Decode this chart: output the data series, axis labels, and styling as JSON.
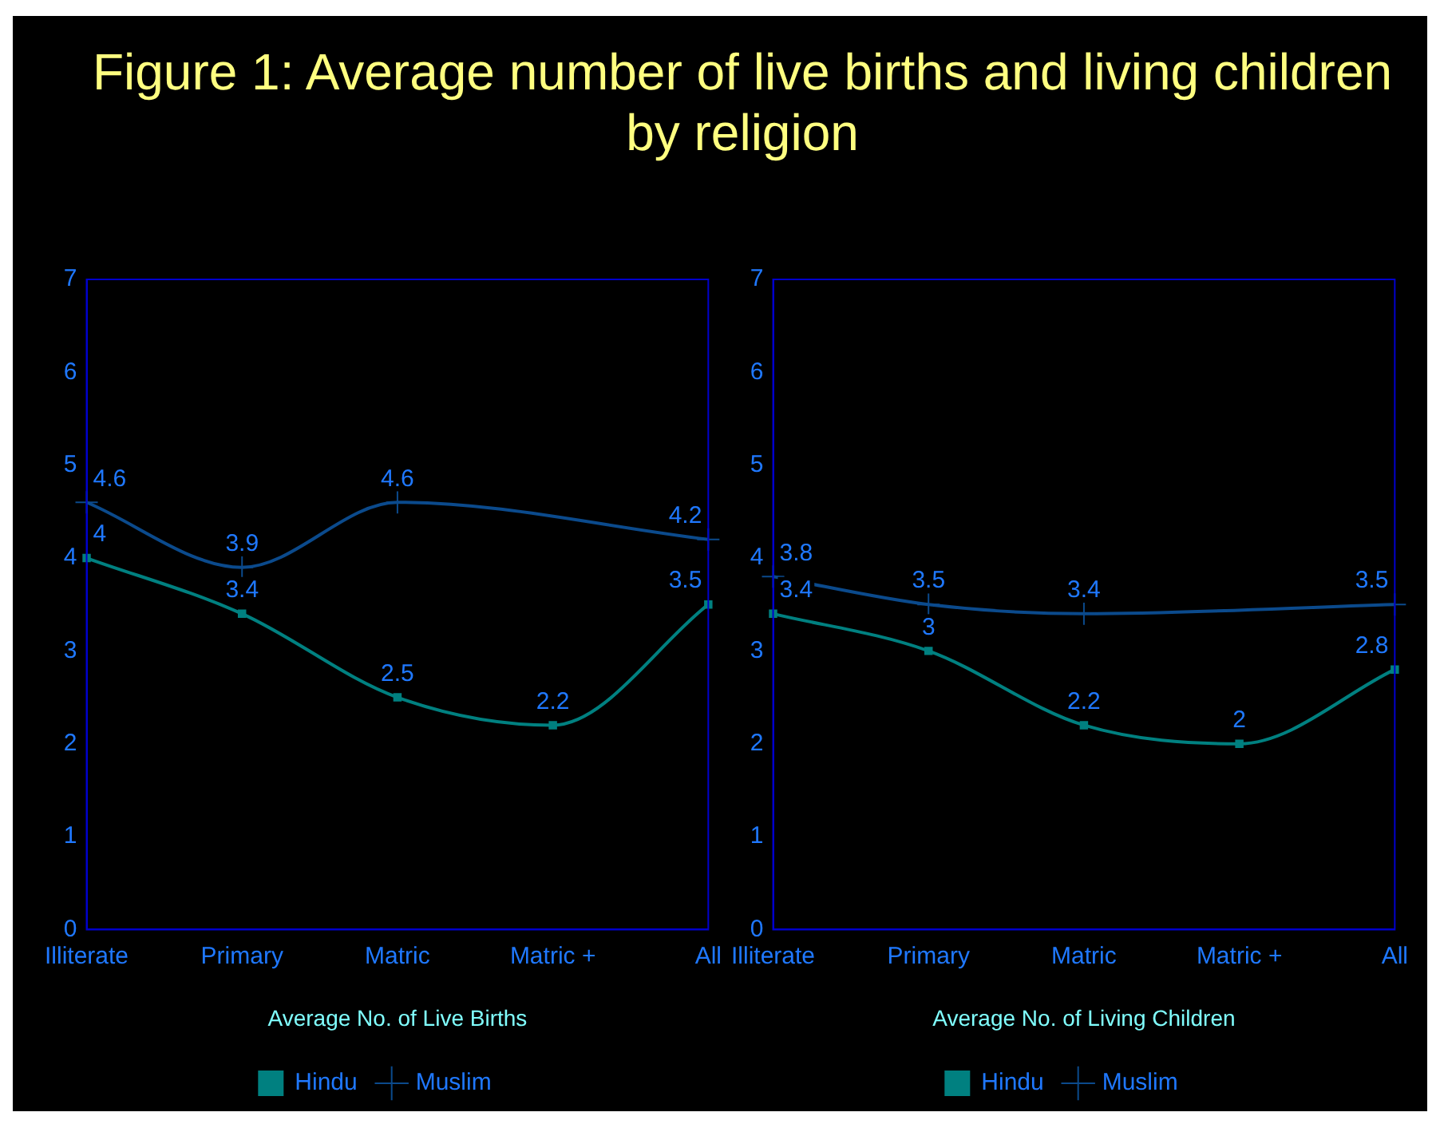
{
  "chart_data": [
    {
      "type": "line",
      "title": "Figure 1: Average number of live births and living children by religion",
      "xlabel": "Average No. of Live Births",
      "categories": [
        "Illiterate",
        "Primary",
        "Matric",
        "Matric +",
        "All"
      ],
      "series": [
        {
          "name": "Hindu",
          "color": "#008080",
          "marker": "square",
          "values": [
            4,
            3.4,
            2.5,
            2.2,
            3.5
          ]
        },
        {
          "name": "Muslim",
          "color": "#0b4a8c",
          "marker": "cross",
          "values": [
            4.6,
            3.9,
            4.6,
            null,
            4.2
          ]
        }
      ],
      "ylim": [
        0,
        7
      ],
      "yticks": [
        0,
        1,
        2,
        3,
        4,
        5,
        6,
        7
      ],
      "legend": "bottom",
      "data_labels": true
    },
    {
      "type": "line",
      "xlabel": "Average No. of Living Children",
      "categories": [
        "Illiterate",
        "Primary",
        "Matric",
        "Matric +",
        "All"
      ],
      "series": [
        {
          "name": "Hindu",
          "color": "#008080",
          "marker": "square",
          "values": [
            3.4,
            3,
            2.2,
            2,
            2.8
          ]
        },
        {
          "name": "Muslim",
          "color": "#0b4a8c",
          "marker": "cross",
          "values": [
            3.8,
            3.5,
            3.4,
            null,
            3.5
          ]
        }
      ],
      "ylim": [
        0,
        7
      ],
      "yticks": [
        0,
        1,
        2,
        3,
        4,
        5,
        6,
        7
      ],
      "legend": "bottom",
      "data_labels": true
    }
  ]
}
